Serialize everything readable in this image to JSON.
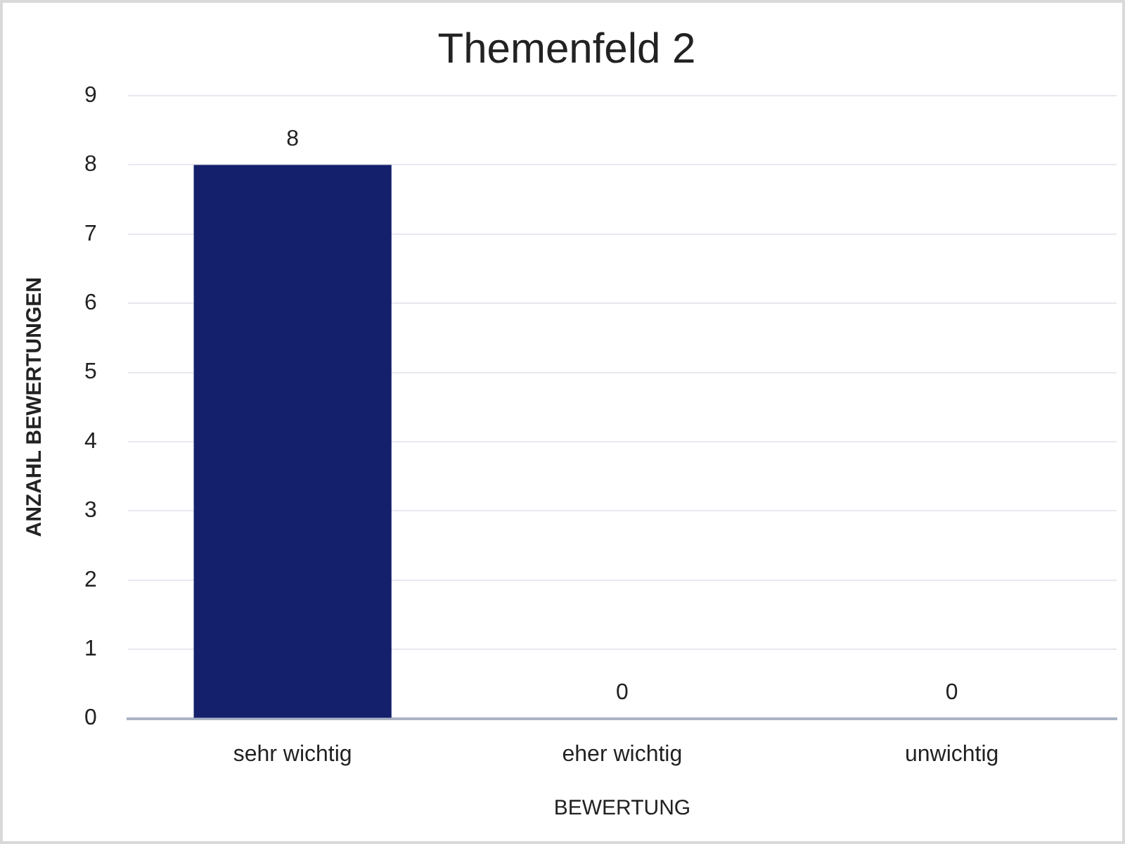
{
  "chart_data": {
    "type": "bar",
    "title": "Themenfeld 2",
    "xlabel": "BEWERTUNG",
    "ylabel": "ANZAHL BEWERTUNGEN",
    "categories": [
      "sehr wichtig",
      "eher wichtig",
      "unwichtig"
    ],
    "values": [
      8,
      0,
      0
    ],
    "color": "#14206b",
    "ylim": [
      0,
      9
    ],
    "yticks": [
      0,
      1,
      2,
      3,
      4,
      5,
      6,
      7,
      8,
      9
    ],
    "grid": "y",
    "data_labels": true
  }
}
